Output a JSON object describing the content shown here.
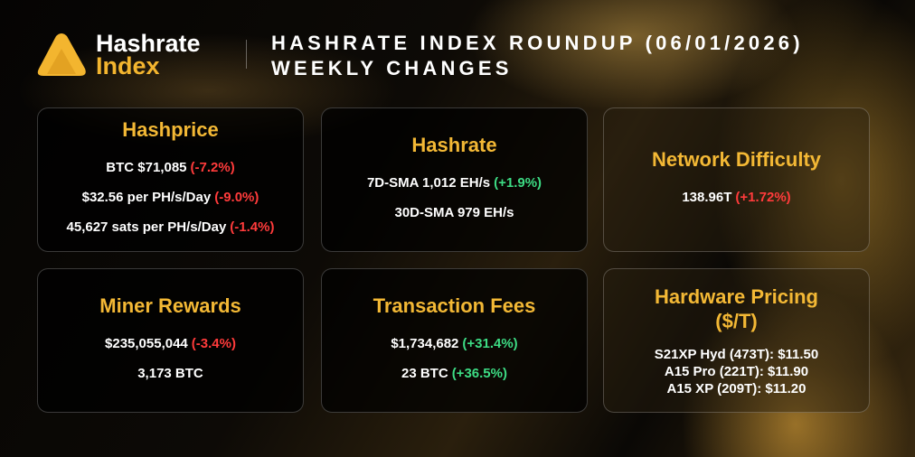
{
  "header": {
    "logo_line1": "Hashrate",
    "logo_line2": "Index",
    "title": "HASHRATE INDEX ROUNDUP (06/01/2026)",
    "subtitle": "WEEKLY CHANGES"
  },
  "cards": [
    {
      "title": "Hashprice",
      "lines": [
        {
          "text": "BTC $71,085",
          "change": "(-7.2%)",
          "change_color": "#ff3b3b"
        },
        {
          "text": "$32.56 per PH/s/Day",
          "change": "(-9.0%)",
          "change_color": "#ff3b3b"
        },
        {
          "text": "45,627 sats per PH/s/Day",
          "change": "(-1.4%)",
          "change_color": "#ff3b3b"
        }
      ]
    },
    {
      "title": "Hashrate",
      "lines": [
        {
          "text": "7D-SMA 1,012 EH/s",
          "change": "(+1.9%)",
          "change_color": "#3ddc84"
        },
        {
          "text": "30D-SMA 979 EH/s"
        }
      ]
    },
    {
      "title": "Network Difficulty",
      "lines": [
        {
          "text": "138.96T",
          "change": "(+1.72%)",
          "change_color": "#ff3b3b"
        }
      ]
    },
    {
      "title": "Miner Rewards",
      "lines": [
        {
          "text": "$235,055,044",
          "change": "(-3.4%)",
          "change_color": "#ff3b3b"
        },
        {
          "text": "3,173 BTC"
        }
      ]
    },
    {
      "title": "Transaction Fees",
      "lines": [
        {
          "text": "$1,734,682",
          "change": "(+31.4%)",
          "change_color": "#3ddc84"
        },
        {
          "text": "23 BTC",
          "change": "(+36.5%)",
          "change_color": "#3ddc84"
        }
      ]
    },
    {
      "title": "Hardware Pricing ($/T)",
      "lines": [
        {
          "text": "S21XP Hyd (473T): $11.50"
        },
        {
          "text": "A15 Pro (221T): $11.90"
        },
        {
          "text": "A15 XP (209T): $11.20"
        }
      ]
    }
  ]
}
